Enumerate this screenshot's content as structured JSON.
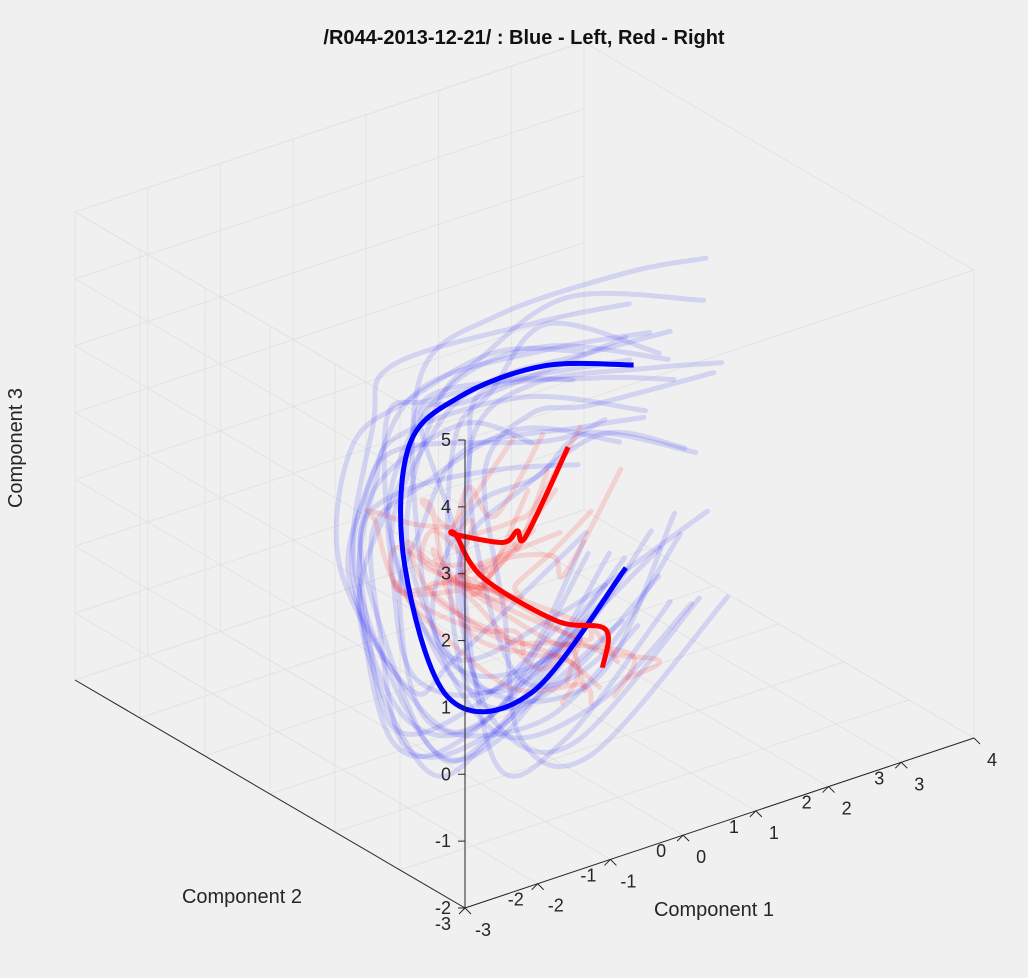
{
  "chart_data": {
    "type": "line",
    "title": "/R044-2013-12-21/ : Blue - Left, Red - Right",
    "xlabel": "Component 1",
    "ylabel": "Component 2",
    "zlabel": "Component 3",
    "xlim": [
      -3,
      4
    ],
    "ylim": [
      -3,
      3
    ],
    "zlim": [
      -2,
      5
    ],
    "x_ticks": [
      "-3",
      "-2",
      "-1",
      "0",
      "1",
      "2",
      "3",
      "4"
    ],
    "y_ticks": [
      "-3",
      "-2",
      "-1",
      "0",
      "1",
      "2",
      "3"
    ],
    "z_ticks": [
      "-2",
      "-1",
      "0",
      "1",
      "2",
      "3",
      "4",
      "5"
    ],
    "grid": true,
    "view": "3d",
    "series": [
      {
        "color": "#0000ff",
        "style": "bold mean trajectory",
        "x": [
          1.0,
          -0.3,
          -0.9,
          -0.7,
          -0.2,
          0.5,
          1.3,
          2.0
        ],
        "y": [
          -1.0,
          -1.0,
          -0.4,
          0.5,
          1.0,
          1.0,
          0.6,
          0.0
        ],
        "z": [
          0.5,
          -0.9,
          -1.1,
          0.3,
          1.6,
          2.1,
          2.5,
          2.6
        ]
      },
      {
        "color": "#ff0000",
        "style": "bold mean trajectory",
        "x": [
          0.5,
          0.9,
          0.5,
          0.2,
          0.1,
          -0.1,
          0.2,
          0.4,
          0.7,
          1.1
        ],
        "y": [
          -1.2,
          -0.8,
          -0.5,
          0.3,
          0.6,
          0.4,
          0.0,
          0.0,
          0.2,
          0.0
        ],
        "z": [
          -0.7,
          -0.5,
          -0.4,
          -0.1,
          0.4,
          0.6,
          0.6,
          0.7,
          0.4,
          1.7
        ]
      }
    ]
  }
}
